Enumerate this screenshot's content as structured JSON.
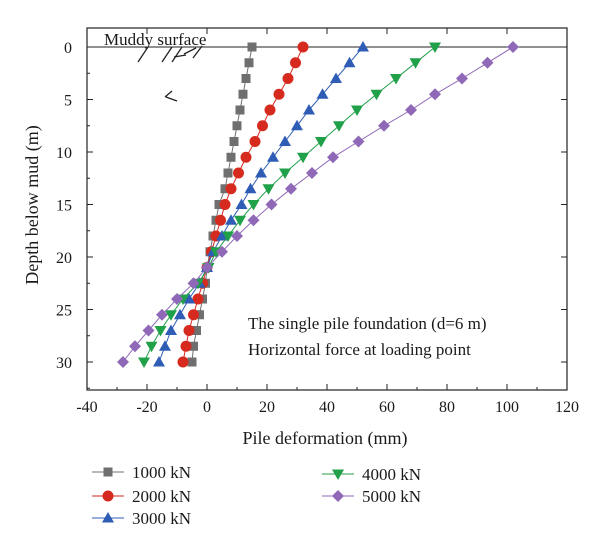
{
  "chart_data": {
    "type": "line",
    "xlabel": "Pile deformation (mm)",
    "ylabel": "Depth below mud (m)",
    "xlim": [
      -40,
      120
    ],
    "ylim": [
      0,
      32
    ],
    "y_reversed": true,
    "xticks": [
      -40,
      -20,
      0,
      20,
      40,
      60,
      80,
      100,
      120
    ],
    "yticks": [
      0,
      5,
      10,
      15,
      20,
      25,
      30
    ],
    "annotations": {
      "surface_label": "Muddy surface",
      "note_line1": "The single pile foundation (d=6 m)",
      "note_line2": "Horizontal force at loading point"
    },
    "legend_position": "below",
    "depths": [
      0,
      1.5,
      3,
      4.5,
      6,
      7.5,
      9,
      10.5,
      12,
      13.5,
      15,
      16.5,
      18,
      19.5,
      21,
      22.5,
      24,
      25.5,
      27,
      28.5,
      30
    ],
    "series": [
      {
        "name": "1000 kN",
        "color": "#6f6f6f",
        "marker": "square",
        "x": [
          15,
          14,
          13,
          12,
          11,
          10,
          9,
          8,
          7,
          6,
          4,
          3,
          2,
          1,
          0,
          -0.5,
          -1.5,
          -2.5,
          -3.5,
          -4.5,
          -5
        ]
      },
      {
        "name": "2000 kN",
        "color": "#d62a1f",
        "marker": "circle",
        "x": [
          32,
          29.5,
          27,
          24,
          21,
          18.5,
          16,
          13,
          10.5,
          8,
          6,
          4.5,
          3,
          1.5,
          0,
          -1.5,
          -3,
          -4.5,
          -6,
          -7,
          -8
        ]
      },
      {
        "name": "3000 kN",
        "color": "#2f5db6",
        "marker": "triangle-up",
        "x": [
          52,
          47.5,
          43,
          38.5,
          34,
          30,
          26,
          22,
          18,
          14.5,
          11.5,
          8,
          5,
          2,
          0,
          -2.5,
          -6,
          -9,
          -12,
          -14,
          -16
        ]
      },
      {
        "name": "4000 kN",
        "color": "#21a04a",
        "marker": "triangle-down",
        "x": [
          76,
          69.5,
          63,
          56.5,
          50,
          44,
          38,
          32,
          26,
          20.5,
          15.5,
          11,
          7,
          3,
          0.5,
          -3,
          -8,
          -12,
          -15.5,
          -18.5,
          -21
        ]
      },
      {
        "name": "5000 kN",
        "color": "#8f69b8",
        "marker": "diamond",
        "x": [
          102,
          93.5,
          85,
          76,
          68,
          59,
          50.5,
          42,
          35,
          28,
          21.5,
          15.5,
          10,
          5,
          0,
          -4.5,
          -10,
          -15,
          -19.5,
          -24,
          -28
        ]
      }
    ]
  }
}
